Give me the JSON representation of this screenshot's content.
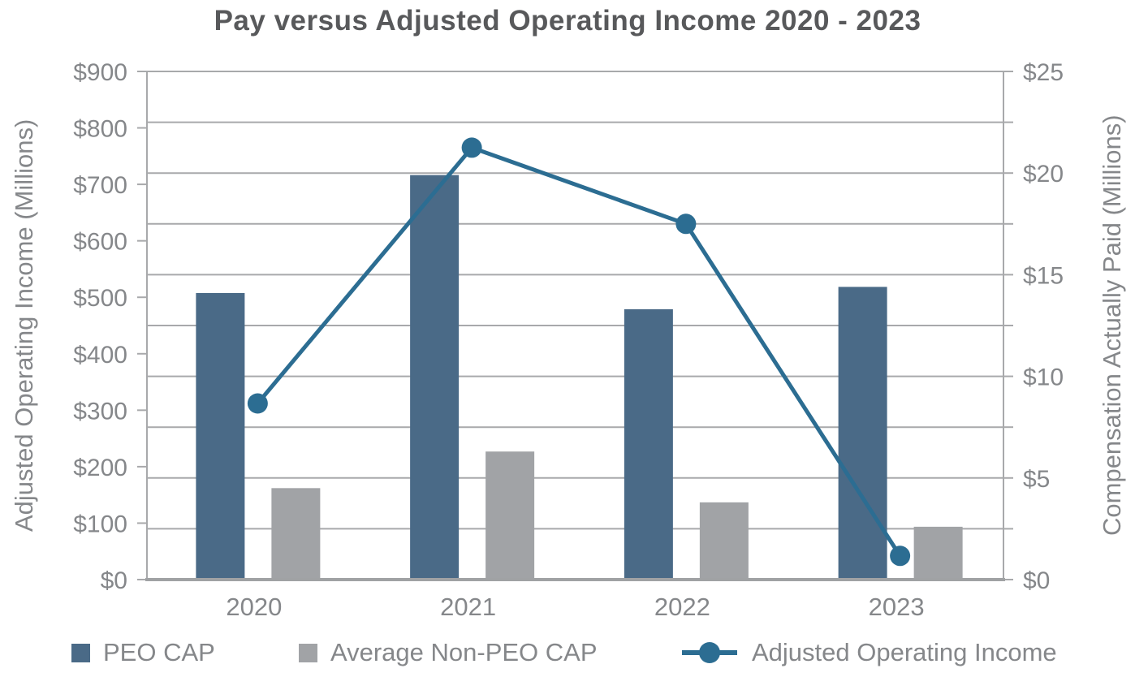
{
  "title": "Pay versus Adjusted Operating Income 2020 - 2023",
  "chart_data": {
    "type": "combo",
    "categories": [
      "2020",
      "2021",
      "2022",
      "2023"
    ],
    "series": [
      {
        "name": "PEO CAP",
        "type": "bar",
        "axis": "right",
        "color": "#4A6A87",
        "values": [
          14.1,
          19.9,
          13.3,
          14.4
        ]
      },
      {
        "name": "Average Non-PEO CAP",
        "type": "bar",
        "axis": "right",
        "color": "#A1A3A6",
        "values": [
          4.5,
          6.3,
          3.8,
          2.6
        ]
      },
      {
        "name": "Adjusted Operating Income",
        "type": "line",
        "axis": "left",
        "color": "#2C6D92",
        "values": [
          312,
          765,
          630,
          42
        ]
      }
    ],
    "left_axis": {
      "title": "Adjusted Operating Income (Millions)",
      "min": 0,
      "max": 900,
      "label_step": 100,
      "tick_labels": [
        "$0",
        "$100",
        "$200",
        "$300",
        "$400",
        "$500",
        "$600",
        "$700",
        "$800",
        "$900"
      ]
    },
    "right_axis": {
      "title": "Compensation Actually Paid (Millions)",
      "min": 0,
      "max": 25,
      "label_step": 5,
      "gridline_step": 2.5,
      "tick_labels": [
        "$0",
        "$5",
        "$10",
        "$15",
        "$20",
        "$25"
      ]
    },
    "grid": "on",
    "legend_position": "bottom"
  },
  "legend": {
    "items": [
      {
        "label": "PEO CAP",
        "swatch": "square",
        "color": "#4A6A87"
      },
      {
        "label": "Average Non-PEO CAP",
        "swatch": "square",
        "color": "#A1A3A6"
      },
      {
        "label": "Adjusted Operating Income",
        "swatch": "line-marker",
        "color": "#2C6D92"
      }
    ]
  },
  "colors": {
    "title_text": "#58595B",
    "axis_text": "#85878A",
    "gridline": "#A8A9AB",
    "axis_line": "#A0A2A4",
    "peo_bar": "#4A6A87",
    "non_peo_bar": "#A1A3A6",
    "line_series": "#2C6D92"
  }
}
